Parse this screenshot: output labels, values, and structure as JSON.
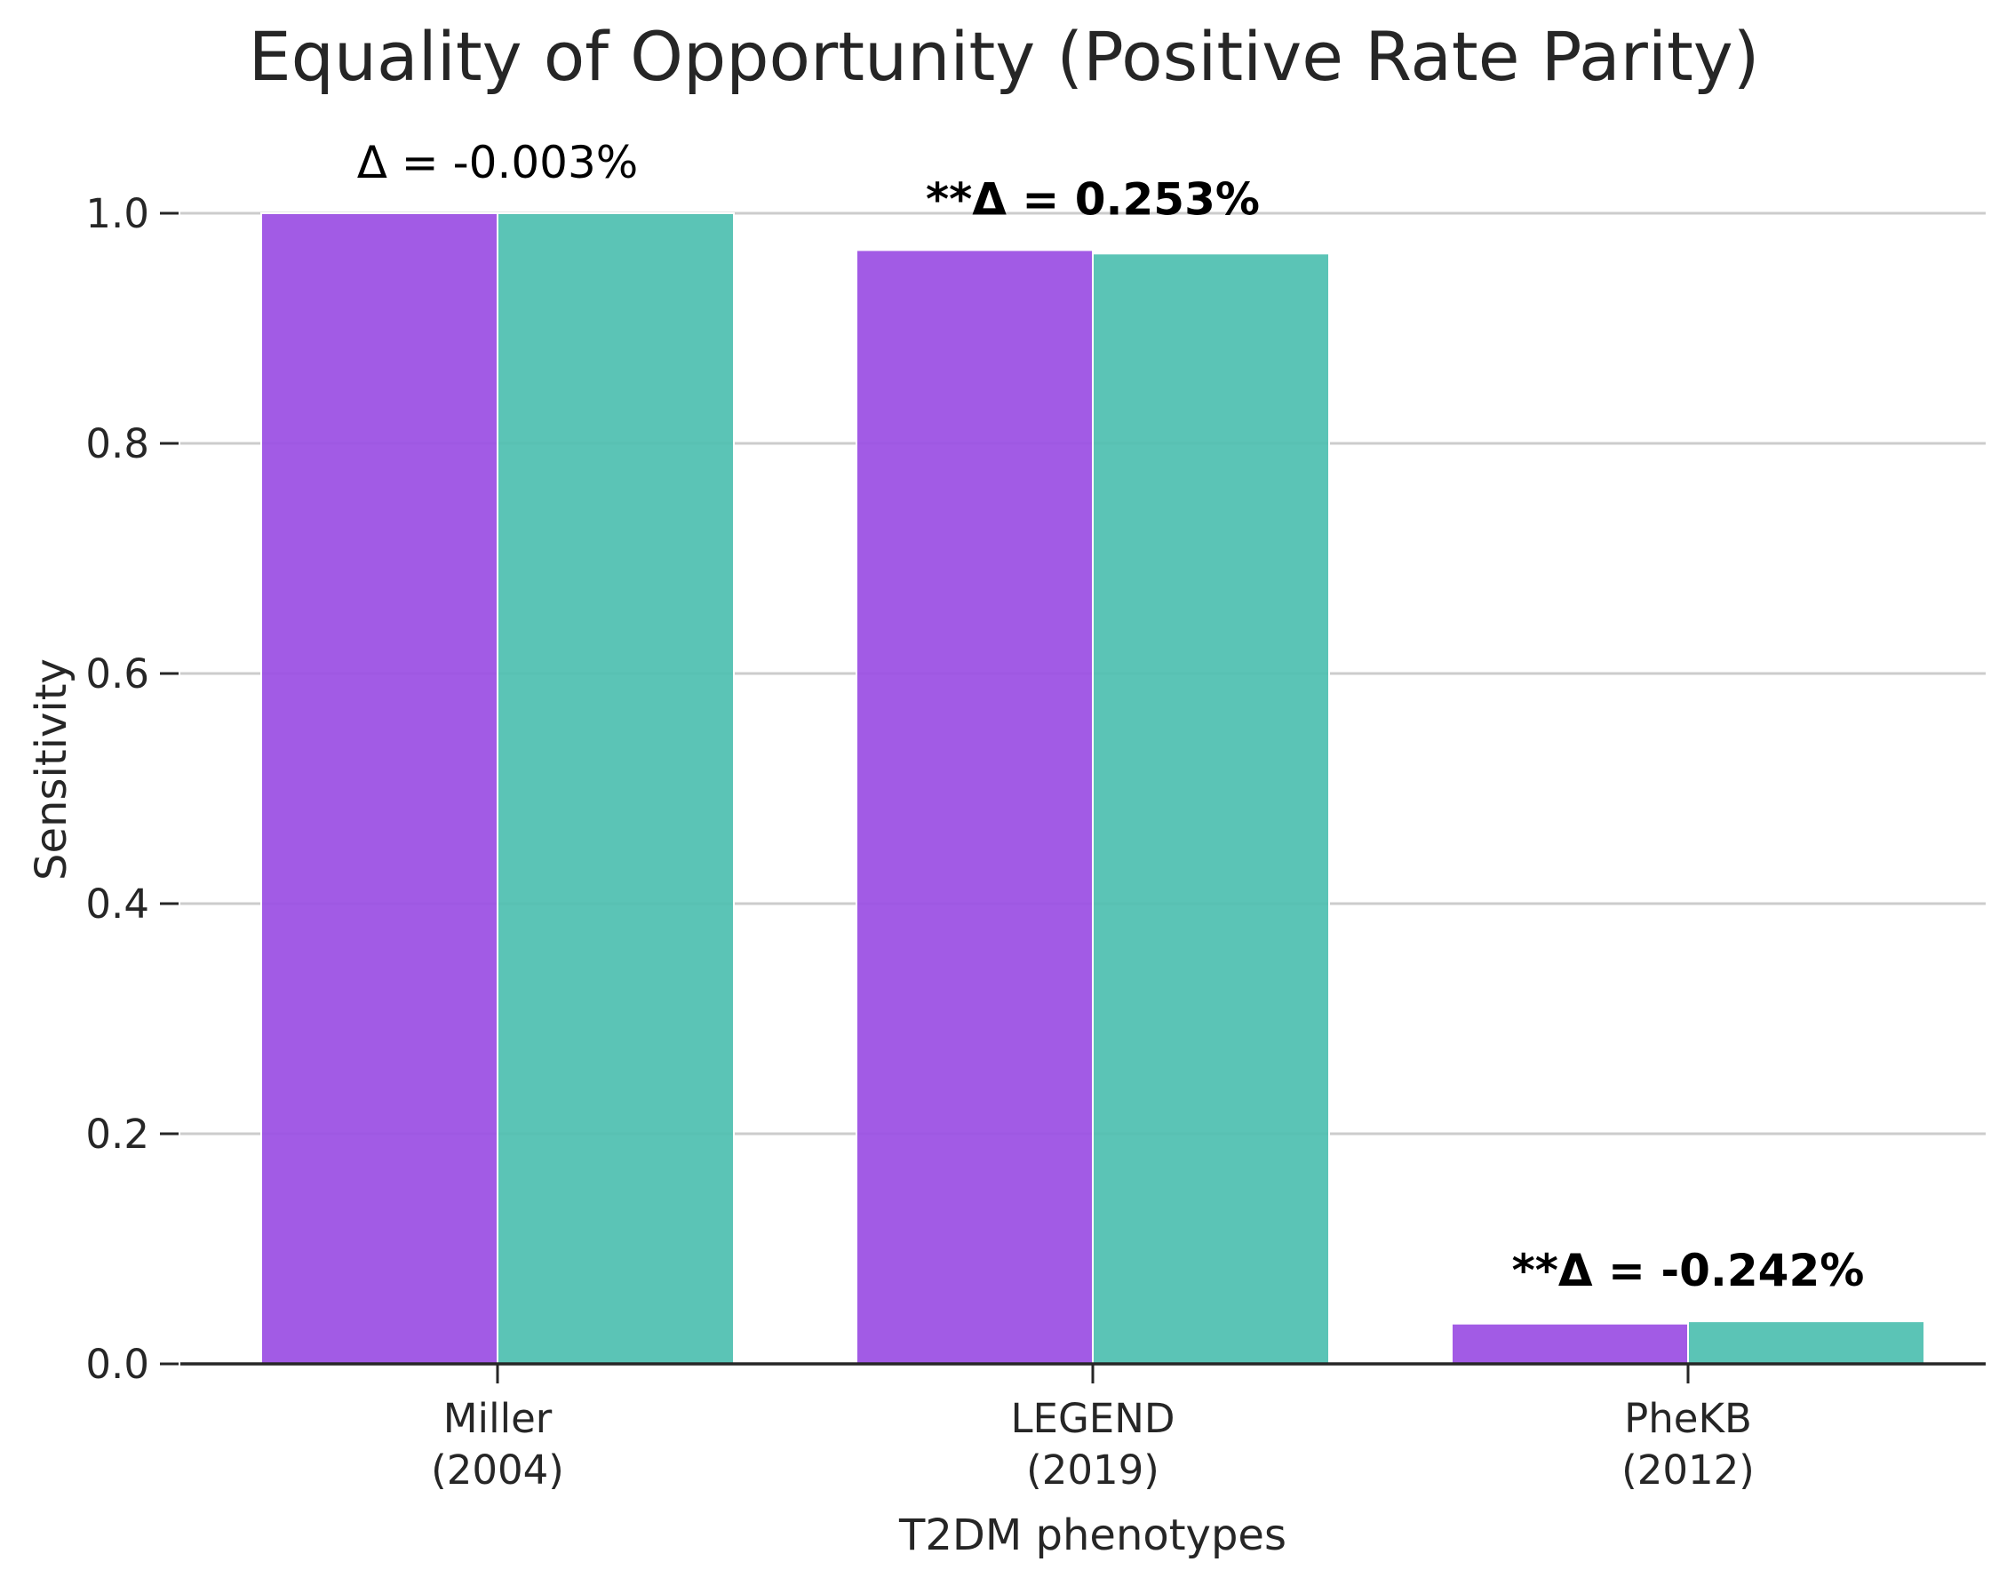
{
  "chart_data": {
    "type": "bar",
    "title": "Equality of Opportunity (Positive Rate Parity)",
    "xlabel": "T2DM phenotypes",
    "ylabel": "Sensitivity",
    "ylim": [
      0,
      1.0
    ],
    "yticks": [
      0.0,
      0.2,
      0.4,
      0.6,
      0.8,
      1.0
    ],
    "ytick_labels": [
      "0.0",
      "0.2",
      "0.4",
      "0.6",
      "0.8",
      "1.0"
    ],
    "grid": "horizontal",
    "categories": [
      {
        "line1": "Miller",
        "line2": "(2004)"
      },
      {
        "line1": "LEGEND",
        "line2": "(2019)"
      },
      {
        "line1": "PheKB",
        "line2": "(2012)"
      }
    ],
    "series": [
      {
        "color": "#9b4fe3",
        "values": [
          1.0,
          0.968,
          0.035
        ]
      },
      {
        "color": "#4fbfb0",
        "values": [
          1.0,
          0.965,
          0.037
        ]
      }
    ],
    "annotations": [
      {
        "prefix": "Δ = ",
        "value": "-0.003%",
        "bold": false
      },
      {
        "prefix": "**Δ = ",
        "value": "0.253%",
        "bold": true
      },
      {
        "prefix": "**Δ = ",
        "value": "-0.242%",
        "bold": true
      }
    ]
  }
}
